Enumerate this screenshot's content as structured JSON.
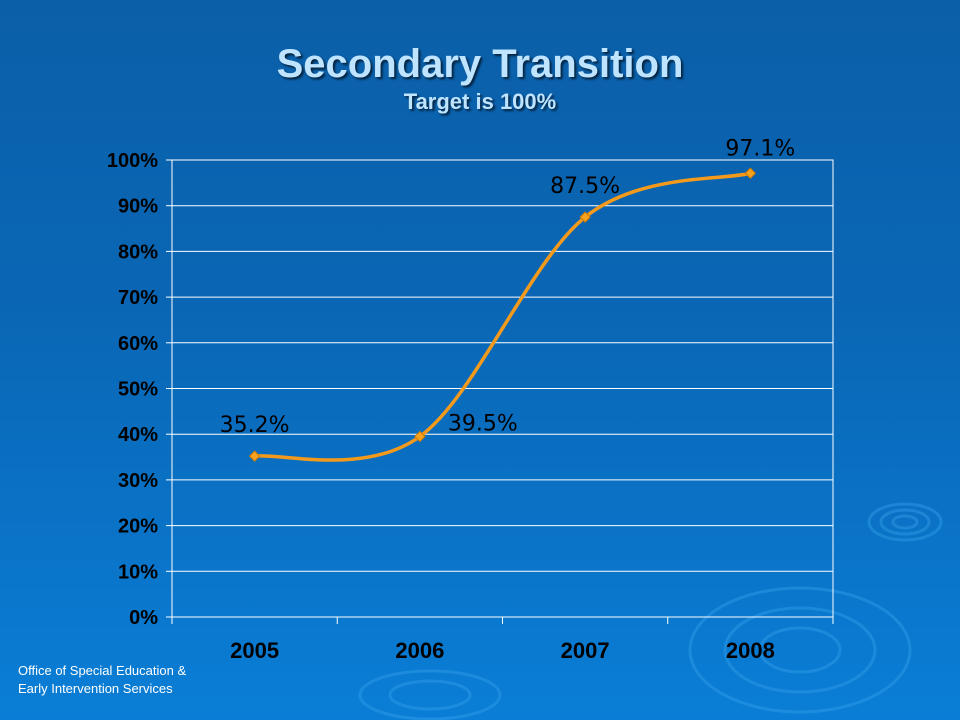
{
  "slide": {
    "title": "Secondary Transition",
    "subtitle": "Target is 100%",
    "footer_line1": "Office of Special Education &",
    "footer_line2": "Early Intervention Services"
  },
  "colors": {
    "line": "#f39a1c",
    "marker": "#f6a21e",
    "grid": "#ffffff",
    "text": "#000000"
  },
  "chart_data": {
    "type": "line",
    "categories": [
      "2005",
      "2006",
      "2007",
      "2008"
    ],
    "series": [
      {
        "values": [
          35.2,
          39.5,
          87.5,
          97.1
        ]
      }
    ],
    "data_labels": [
      "35.2%",
      "39.5%",
      "87.5%",
      "97.1%"
    ],
    "y_ticks": [
      "0%",
      "10%",
      "20%",
      "30%",
      "40%",
      "50%",
      "60%",
      "70%",
      "80%",
      "90%",
      "100%"
    ],
    "ylim": [
      0,
      100
    ],
    "grid": true,
    "smooth": true
  }
}
